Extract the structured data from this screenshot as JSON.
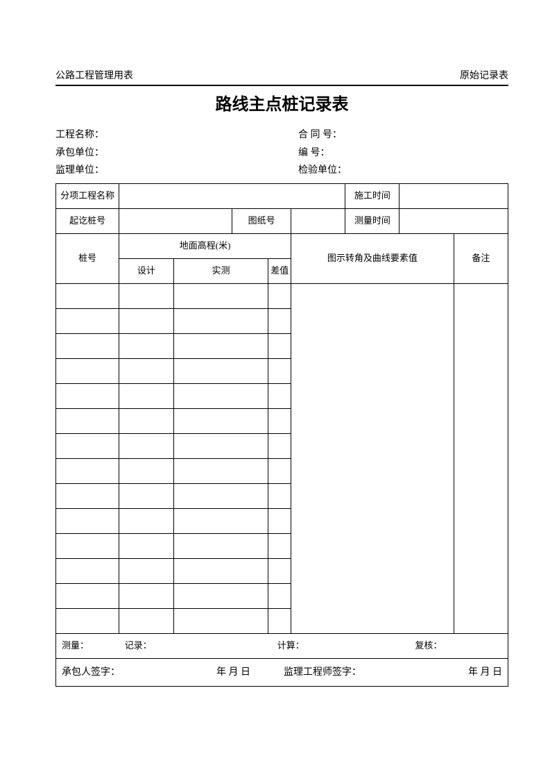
{
  "header": {
    "left": "公路工程管理用表",
    "right": "原始记录表"
  },
  "title": "路线主点桩记录表",
  "meta": {
    "project_name_label": "工程名称：",
    "contract_no_label": "合 同 号：",
    "contractor_label": "承包单位：",
    "serial_no_label": "编    号：",
    "supervisor_label": "监理单位：",
    "inspection_unit_label": "检验单位："
  },
  "table_headers": {
    "subitem_name": "分项工程名称",
    "construction_time": "施工时间",
    "start_end_stake": "起讫桩号",
    "drawing_no": "图纸号",
    "measure_time": "测量时间",
    "stake_no": "桩号",
    "ground_elevation": "地面高程(米)",
    "design": "设计",
    "measured": "实测",
    "difference": "差值",
    "diagram_angle": "图示转角及曲线要素值",
    "remarks": "备注"
  },
  "footer": {
    "measure": "测量：",
    "record": "记录：",
    "calculate": "计算：",
    "review": "复核："
  },
  "signature": {
    "contractor_sign": "承包人签字：",
    "date1": "年  月  日",
    "supervisor_sign": "监理工程师签字：",
    "date2": "年  月  日"
  },
  "data_rows_count": 14
}
